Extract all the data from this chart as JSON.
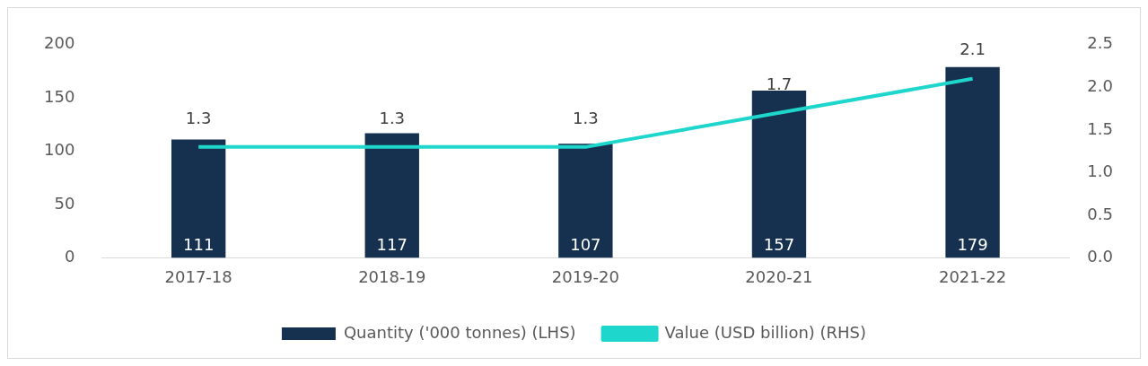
{
  "chart_data": {
    "type": "bar",
    "categories": [
      "2017-18",
      "2018-19",
      "2019-20",
      "2020-21",
      "2021-22"
    ],
    "series": [
      {
        "name": "Quantity ('000 tonnes) (LHS)",
        "color": "#15314f",
        "values": [
          111,
          117,
          107,
          157,
          179
        ]
      },
      {
        "name": "Value (USD billion) (RHS)",
        "type": "line",
        "axis": "y2",
        "color": "#1fd6cc",
        "values": [
          1.3,
          1.3,
          1.3,
          1.7,
          2.1
        ]
      }
    ],
    "ylim": [
      0,
      200
    ],
    "yticks": [
      0,
      50,
      100,
      150,
      200
    ],
    "y2lim": [
      0,
      2.5
    ],
    "y2ticks": [
      {
        "value": 0,
        "label": "0.0"
      },
      {
        "value": 0.5,
        "label": "0.5"
      },
      {
        "value": 1,
        "label": "1.0"
      },
      {
        "value": 1.5,
        "label": "1.5"
      },
      {
        "value": 2,
        "label": "2.0"
      },
      {
        "value": 2.5,
        "label": "2.5"
      }
    ],
    "grid": false,
    "legend": "bottom",
    "data_labels": true,
    "marker": "none"
  }
}
